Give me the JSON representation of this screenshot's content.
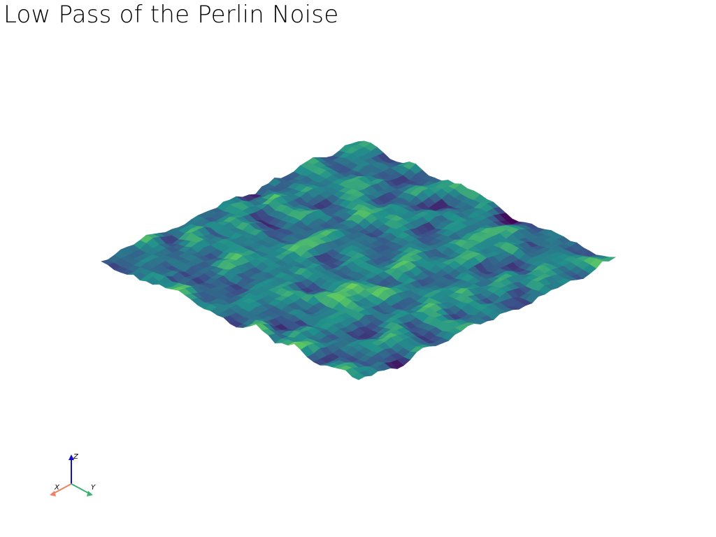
{
  "title": "Low Pass of the Perlin Noise",
  "surface": {
    "colormap_stops": [
      "#440154",
      "#3b528b",
      "#21918c",
      "#5ec962",
      "#fde725"
    ]
  },
  "axes": {
    "x": {
      "label": "X",
      "color": "#f08060"
    },
    "y": {
      "label": "Y",
      "color": "#40b070"
    },
    "z": {
      "label": "Z",
      "color": "#1010d0"
    }
  }
}
